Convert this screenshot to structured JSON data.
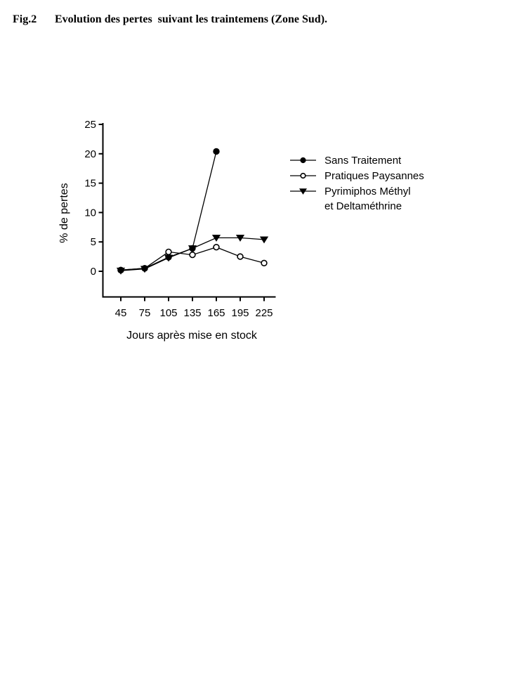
{
  "figure": {
    "fig_label": "Fig.2",
    "title": "Evolution des pertes  suivant les traintemens (Zone Sud)."
  },
  "chart_data": {
    "type": "line",
    "title": "",
    "xlabel": "Jours après mise en stock",
    "ylabel": "% de pertes",
    "x": [
      45,
      75,
      105,
      135,
      165,
      195,
      225
    ],
    "xtick_labels": [
      "45",
      "75",
      "105",
      "135",
      "165",
      "195",
      "225"
    ],
    "yticks": [
      0,
      5,
      10,
      15,
      20,
      25
    ],
    "ytick_labels": [
      "0",
      "5",
      "10",
      "15",
      "20",
      "25"
    ],
    "ylim": [
      0,
      25
    ],
    "xlim": [
      45,
      225
    ],
    "grid": false,
    "legend_position": "right",
    "series": [
      {
        "name": "Sans Traitement",
        "marker": "filled-circle",
        "x": [
          45,
          75,
          105,
          135,
          165
        ],
        "values": [
          0.2,
          0.5,
          2.4,
          3.9,
          20.4
        ]
      },
      {
        "name": "Pratiques Paysannes",
        "marker": "open-circle",
        "x": [
          45,
          75,
          105,
          135,
          165,
          195,
          225
        ],
        "values": [
          0.2,
          0.5,
          3.3,
          2.8,
          4.1,
          2.5,
          1.4
        ]
      },
      {
        "name": "Pyrimiphos Méthyl et Deltaméthrine",
        "marker": "filled-triangle-down",
        "x": [
          45,
          75,
          105,
          135,
          165,
          195,
          225
        ],
        "values": [
          0.1,
          0.4,
          2.3,
          3.9,
          5.7,
          5.7,
          5.4
        ]
      }
    ],
    "legend": [
      {
        "marker": "filled-circle",
        "label_lines": [
          "Sans Traitement"
        ]
      },
      {
        "marker": "open-circle",
        "label_lines": [
          "Pratiques Paysannes"
        ]
      },
      {
        "marker": "filled-triangle-down",
        "label_lines": [
          "Pyrimiphos Méthyl",
          "et Deltaméthrine"
        ]
      }
    ],
    "colors": {
      "line": "#000000",
      "marker_fill": "#000000",
      "marker_open_fill": "#ffffff",
      "text": "#000000",
      "background": "#ffffff"
    }
  }
}
